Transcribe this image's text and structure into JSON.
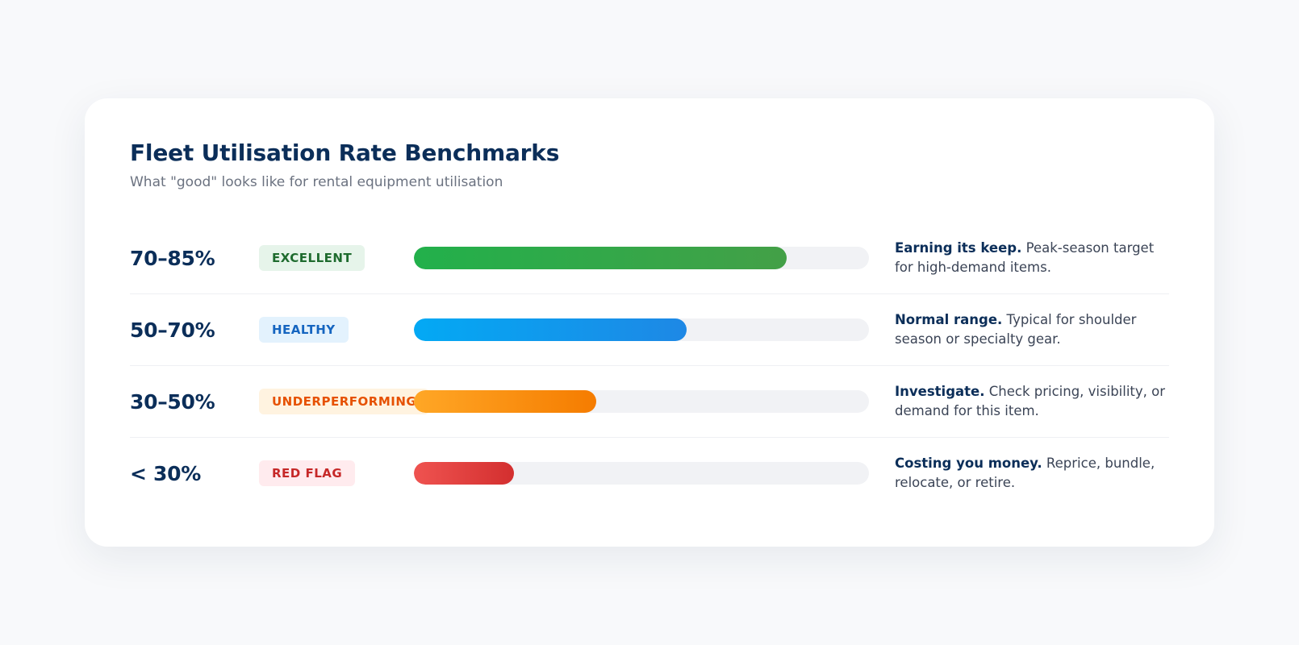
{
  "title": "Fleet Utilisation Rate Benchmarks",
  "subtitle": "What \"good\" looks like for rental equipment utilisation",
  "chart_data": {
    "type": "bar",
    "title": "Fleet Utilisation Rate Benchmarks",
    "subtitle": "What \"good\" looks like for rental equipment utilisation",
    "xlim": [
      0,
      100
    ],
    "categories": [
      "70–85%",
      "50–70%",
      "30–50%",
      "< 30%"
    ],
    "values": [
      82,
      60,
      40,
      22
    ],
    "rows": [
      {
        "range": "70–85%",
        "badge": "EXCELLENT",
        "value": 82,
        "badge_bg": "#e6f4ea",
        "badge_color": "#1e6b2e",
        "bar_from": "#22b04b",
        "bar_to": "#43a047",
        "desc_lead": "Earning its keep.",
        "desc_text": " Peak-season target for high-demand items."
      },
      {
        "range": "50–70%",
        "badge": "HEALTHY",
        "value": 60,
        "badge_bg": "#e3f2fd",
        "badge_color": "#1565c0",
        "bar_from": "#03a9f4",
        "bar_to": "#1e88e5",
        "desc_lead": "Normal range.",
        "desc_text": " Typical for shoulder season or specialty gear."
      },
      {
        "range": "30–50%",
        "badge": "UNDERPERFORMING",
        "value": 40,
        "badge_bg": "#fff3e0",
        "badge_color": "#e65100",
        "bar_from": "#ffa726",
        "bar_to": "#f57c00",
        "desc_lead": "Investigate.",
        "desc_text": " Check pricing, visibility, or demand for this item."
      },
      {
        "range": "< 30%",
        "badge": "RED FLAG",
        "value": 22,
        "badge_bg": "#ffebee",
        "badge_color": "#c62828",
        "bar_from": "#ef5350",
        "bar_to": "#d32f2f",
        "desc_lead": "Costing you money.",
        "desc_text": " Reprice, bundle, relocate, or retire."
      }
    ]
  }
}
